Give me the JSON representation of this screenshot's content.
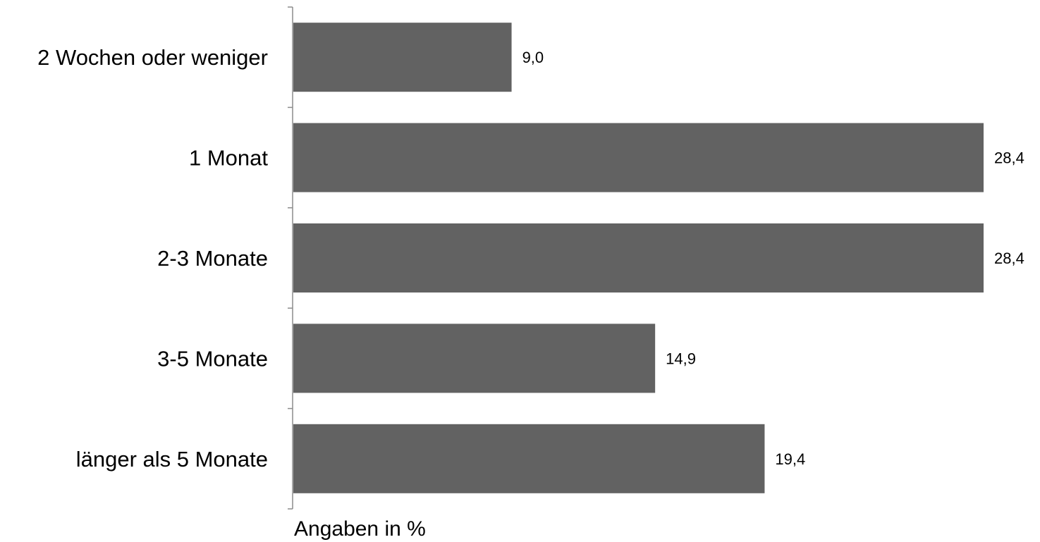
{
  "chart_data": {
    "type": "bar",
    "orientation": "horizontal",
    "categories": [
      "2 Wochen oder weniger",
      "1 Monat",
      "2-3 Monate",
      "3-5 Monate",
      "länger als 5 Monate"
    ],
    "values": [
      9.0,
      28.4,
      28.4,
      14.9,
      19.4
    ],
    "value_labels": [
      "9,0",
      "28,4",
      "28,4",
      "14,9",
      "19,4"
    ],
    "title": "",
    "xlabel": "Angaben in %",
    "ylabel": "",
    "xlim": [
      0,
      28.4
    ],
    "grid": false,
    "legend": "none",
    "colors": {
      "bar": "#626262",
      "axis": "#8c8c8c",
      "text": "#000000"
    }
  }
}
